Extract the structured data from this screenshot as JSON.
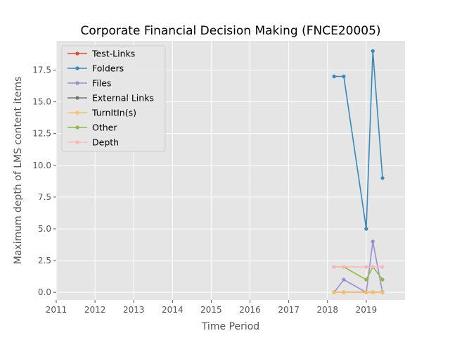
{
  "chart_data": {
    "type": "line",
    "title": "Corporate Financial Decision Making (FNCE20005)",
    "xlabel": "Time Period",
    "ylabel": "Maximum depth of LMS content items",
    "xlim": [
      2011,
      2020
    ],
    "ylim": [
      -0.6,
      19.8
    ],
    "xticks": [
      "2011",
      "2012",
      "2013",
      "2014",
      "2015",
      "2016",
      "2017",
      "2018",
      "2019"
    ],
    "yticks": [
      "0.0",
      "2.5",
      "5.0",
      "7.5",
      "10.0",
      "12.5",
      "15.0",
      "17.5"
    ],
    "grid": true,
    "legend_position": "top-left",
    "x": [
      2018.17,
      2018.42,
      2019.0,
      2019.17,
      2019.42
    ],
    "series": [
      {
        "name": "Test-Links",
        "color": "#E24A33",
        "values": [
          0,
          0,
          0,
          0,
          0
        ]
      },
      {
        "name": "Folders",
        "color": "#348ABD",
        "values": [
          17,
          17,
          5,
          19,
          9
        ]
      },
      {
        "name": "Files",
        "color": "#988ED5",
        "values": [
          0,
          1,
          0,
          4,
          0
        ]
      },
      {
        "name": "External Links",
        "color": "#777777",
        "values": [
          0,
          0,
          0,
          0,
          0
        ]
      },
      {
        "name": "TurnItIn(s)",
        "color": "#FBC15E",
        "values": [
          0,
          0,
          0,
          0,
          0
        ]
      },
      {
        "name": "Other",
        "color": "#8EBA42",
        "values": [
          2,
          2,
          1,
          2,
          1
        ]
      },
      {
        "name": "Depth",
        "color": "#FFB5B8",
        "values": [
          2,
          2,
          2,
          2,
          2
        ]
      }
    ]
  }
}
